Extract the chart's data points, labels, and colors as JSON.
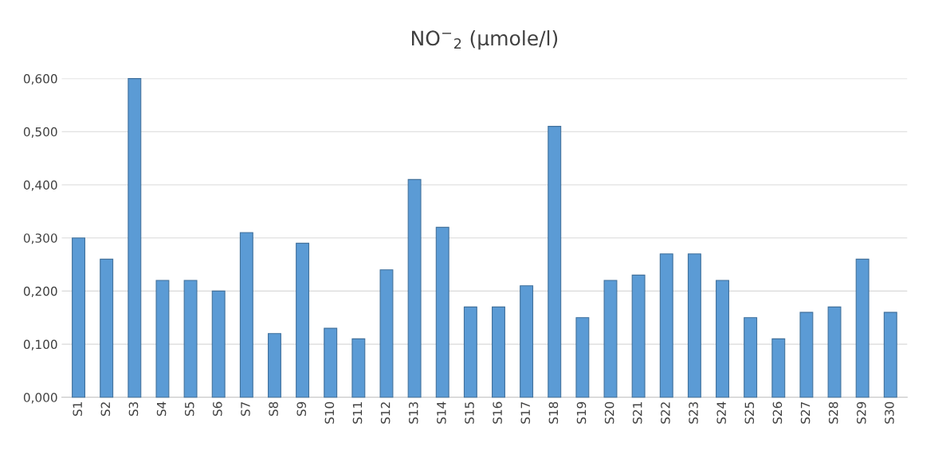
{
  "chart_data": {
    "type": "bar",
    "title": "NO$^{−}$$_{2}$ (μmole/l)",
    "categories": [
      "S1",
      "S2",
      "S3",
      "S4",
      "S5",
      "S6",
      "S7",
      "S8",
      "S9",
      "S10",
      "S11",
      "S12",
      "S13",
      "S14",
      "S15",
      "S16",
      "S17",
      "S18",
      "S19",
      "S20",
      "S21",
      "S22",
      "S23",
      "S24",
      "S25",
      "S26",
      "S27",
      "S28",
      "S29",
      "S30"
    ],
    "values": [
      0.3,
      0.26,
      0.6,
      0.22,
      0.22,
      0.2,
      0.31,
      0.12,
      0.29,
      0.13,
      0.11,
      0.24,
      0.41,
      0.32,
      0.17,
      0.17,
      0.21,
      0.51,
      0.15,
      0.22,
      0.23,
      0.27,
      0.27,
      0.22,
      0.15,
      0.11,
      0.16,
      0.17,
      0.26,
      0.16
    ],
    "color": "#5b9bd5",
    "ylim": [
      0,
      0.6
    ],
    "yticks": [
      {
        "value": 0,
        "label": "0,000"
      },
      {
        "value": 0.1,
        "label": "0,100"
      },
      {
        "value": 0.2,
        "label": "0,200"
      },
      {
        "value": 0.3,
        "label": "0,300"
      },
      {
        "value": 0.4,
        "label": "0,400"
      },
      {
        "value": 0.5,
        "label": "0,500"
      },
      {
        "value": 0.6,
        "label": "0,600"
      }
    ],
    "grid": "y",
    "legend": false
  }
}
